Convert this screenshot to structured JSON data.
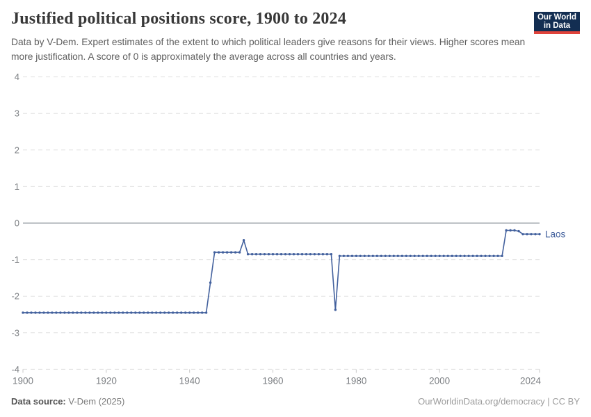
{
  "header": {
    "title": "Justified political positions score, 1900 to 2024",
    "subtitle": "Data by V-Dem. Expert estimates of the extent to which political leaders give reasons for their views. Higher scores mean more justification. A score of 0 is approximately the average across all countries and years.",
    "logo": {
      "line1": "Our World",
      "line2": "in Data"
    }
  },
  "footer": {
    "source_label": "Data source:",
    "source_value": "V-Dem (2025)",
    "link": "OurWorldinData.org/democracy",
    "separator": " | ",
    "license": "CC BY"
  },
  "colors": {
    "series_line": "#42609d",
    "grid_dashed": "#e0e0e0",
    "zero_line": "#a8aeb4",
    "tick_label": "#7d8084",
    "axis_tick": "#c8c8c8",
    "title_text": "#383838",
    "logo_bg": "#132e52",
    "logo_stripe": "#e0433b"
  },
  "chart_data": {
    "type": "line",
    "title": "Justified political positions score, 1900 to 2024",
    "xlabel": "",
    "ylabel": "",
    "xlim": [
      1900,
      2024
    ],
    "ylim": [
      -4,
      4
    ],
    "xticks": [
      1900,
      1920,
      1940,
      1960,
      1980,
      2000,
      2024
    ],
    "yticks": [
      4,
      3,
      2,
      1,
      0,
      -1,
      -2,
      -3,
      -4
    ],
    "grid": "horizontal dashed, solid line at 0",
    "legend_position": "end-of-line label",
    "markers": "point per year",
    "series": [
      {
        "name": "Laos",
        "color": "#42609d",
        "points": [
          [
            1900,
            -2.45
          ],
          [
            1901,
            -2.45
          ],
          [
            1902,
            -2.45
          ],
          [
            1903,
            -2.45
          ],
          [
            1904,
            -2.45
          ],
          [
            1905,
            -2.45
          ],
          [
            1906,
            -2.45
          ],
          [
            1907,
            -2.45
          ],
          [
            1908,
            -2.45
          ],
          [
            1909,
            -2.45
          ],
          [
            1910,
            -2.45
          ],
          [
            1911,
            -2.45
          ],
          [
            1912,
            -2.45
          ],
          [
            1913,
            -2.45
          ],
          [
            1914,
            -2.45
          ],
          [
            1915,
            -2.45
          ],
          [
            1916,
            -2.45
          ],
          [
            1917,
            -2.45
          ],
          [
            1918,
            -2.45
          ],
          [
            1919,
            -2.45
          ],
          [
            1920,
            -2.45
          ],
          [
            1921,
            -2.45
          ],
          [
            1922,
            -2.45
          ],
          [
            1923,
            -2.45
          ],
          [
            1924,
            -2.45
          ],
          [
            1925,
            -2.45
          ],
          [
            1926,
            -2.45
          ],
          [
            1927,
            -2.45
          ],
          [
            1928,
            -2.45
          ],
          [
            1929,
            -2.45
          ],
          [
            1930,
            -2.45
          ],
          [
            1931,
            -2.45
          ],
          [
            1932,
            -2.45
          ],
          [
            1933,
            -2.45
          ],
          [
            1934,
            -2.45
          ],
          [
            1935,
            -2.45
          ],
          [
            1936,
            -2.45
          ],
          [
            1937,
            -2.45
          ],
          [
            1938,
            -2.45
          ],
          [
            1939,
            -2.45
          ],
          [
            1940,
            -2.45
          ],
          [
            1941,
            -2.45
          ],
          [
            1942,
            -2.45
          ],
          [
            1943,
            -2.45
          ],
          [
            1944,
            -2.45
          ],
          [
            1945,
            -1.63
          ],
          [
            1946,
            -0.8
          ],
          [
            1947,
            -0.8
          ],
          [
            1948,
            -0.8
          ],
          [
            1949,
            -0.8
          ],
          [
            1950,
            -0.8
          ],
          [
            1951,
            -0.8
          ],
          [
            1952,
            -0.8
          ],
          [
            1953,
            -0.47
          ],
          [
            1954,
            -0.85
          ],
          [
            1955,
            -0.85
          ],
          [
            1956,
            -0.85
          ],
          [
            1957,
            -0.85
          ],
          [
            1958,
            -0.85
          ],
          [
            1959,
            -0.85
          ],
          [
            1960,
            -0.85
          ],
          [
            1961,
            -0.85
          ],
          [
            1962,
            -0.85
          ],
          [
            1963,
            -0.85
          ],
          [
            1964,
            -0.85
          ],
          [
            1965,
            -0.85
          ],
          [
            1966,
            -0.85
          ],
          [
            1967,
            -0.85
          ],
          [
            1968,
            -0.85
          ],
          [
            1969,
            -0.85
          ],
          [
            1970,
            -0.85
          ],
          [
            1971,
            -0.85
          ],
          [
            1972,
            -0.85
          ],
          [
            1973,
            -0.85
          ],
          [
            1974,
            -0.85
          ],
          [
            1975,
            -2.37
          ],
          [
            1976,
            -0.9
          ],
          [
            1977,
            -0.9
          ],
          [
            1978,
            -0.9
          ],
          [
            1979,
            -0.9
          ],
          [
            1980,
            -0.9
          ],
          [
            1981,
            -0.9
          ],
          [
            1982,
            -0.9
          ],
          [
            1983,
            -0.9
          ],
          [
            1984,
            -0.9
          ],
          [
            1985,
            -0.9
          ],
          [
            1986,
            -0.9
          ],
          [
            1987,
            -0.9
          ],
          [
            1988,
            -0.9
          ],
          [
            1989,
            -0.9
          ],
          [
            1990,
            -0.9
          ],
          [
            1991,
            -0.9
          ],
          [
            1992,
            -0.9
          ],
          [
            1993,
            -0.9
          ],
          [
            1994,
            -0.9
          ],
          [
            1995,
            -0.9
          ],
          [
            1996,
            -0.9
          ],
          [
            1997,
            -0.9
          ],
          [
            1998,
            -0.9
          ],
          [
            1999,
            -0.9
          ],
          [
            2000,
            -0.9
          ],
          [
            2001,
            -0.9
          ],
          [
            2002,
            -0.9
          ],
          [
            2003,
            -0.9
          ],
          [
            2004,
            -0.9
          ],
          [
            2005,
            -0.9
          ],
          [
            2006,
            -0.9
          ],
          [
            2007,
            -0.9
          ],
          [
            2008,
            -0.9
          ],
          [
            2009,
            -0.9
          ],
          [
            2010,
            -0.9
          ],
          [
            2011,
            -0.9
          ],
          [
            2012,
            -0.9
          ],
          [
            2013,
            -0.9
          ],
          [
            2014,
            -0.9
          ],
          [
            2015,
            -0.9
          ],
          [
            2016,
            -0.2
          ],
          [
            2017,
            -0.2
          ],
          [
            2018,
            -0.2
          ],
          [
            2019,
            -0.22
          ],
          [
            2020,
            -0.3
          ],
          [
            2021,
            -0.3
          ],
          [
            2022,
            -0.3
          ],
          [
            2023,
            -0.3
          ],
          [
            2024,
            -0.3
          ]
        ]
      }
    ]
  }
}
